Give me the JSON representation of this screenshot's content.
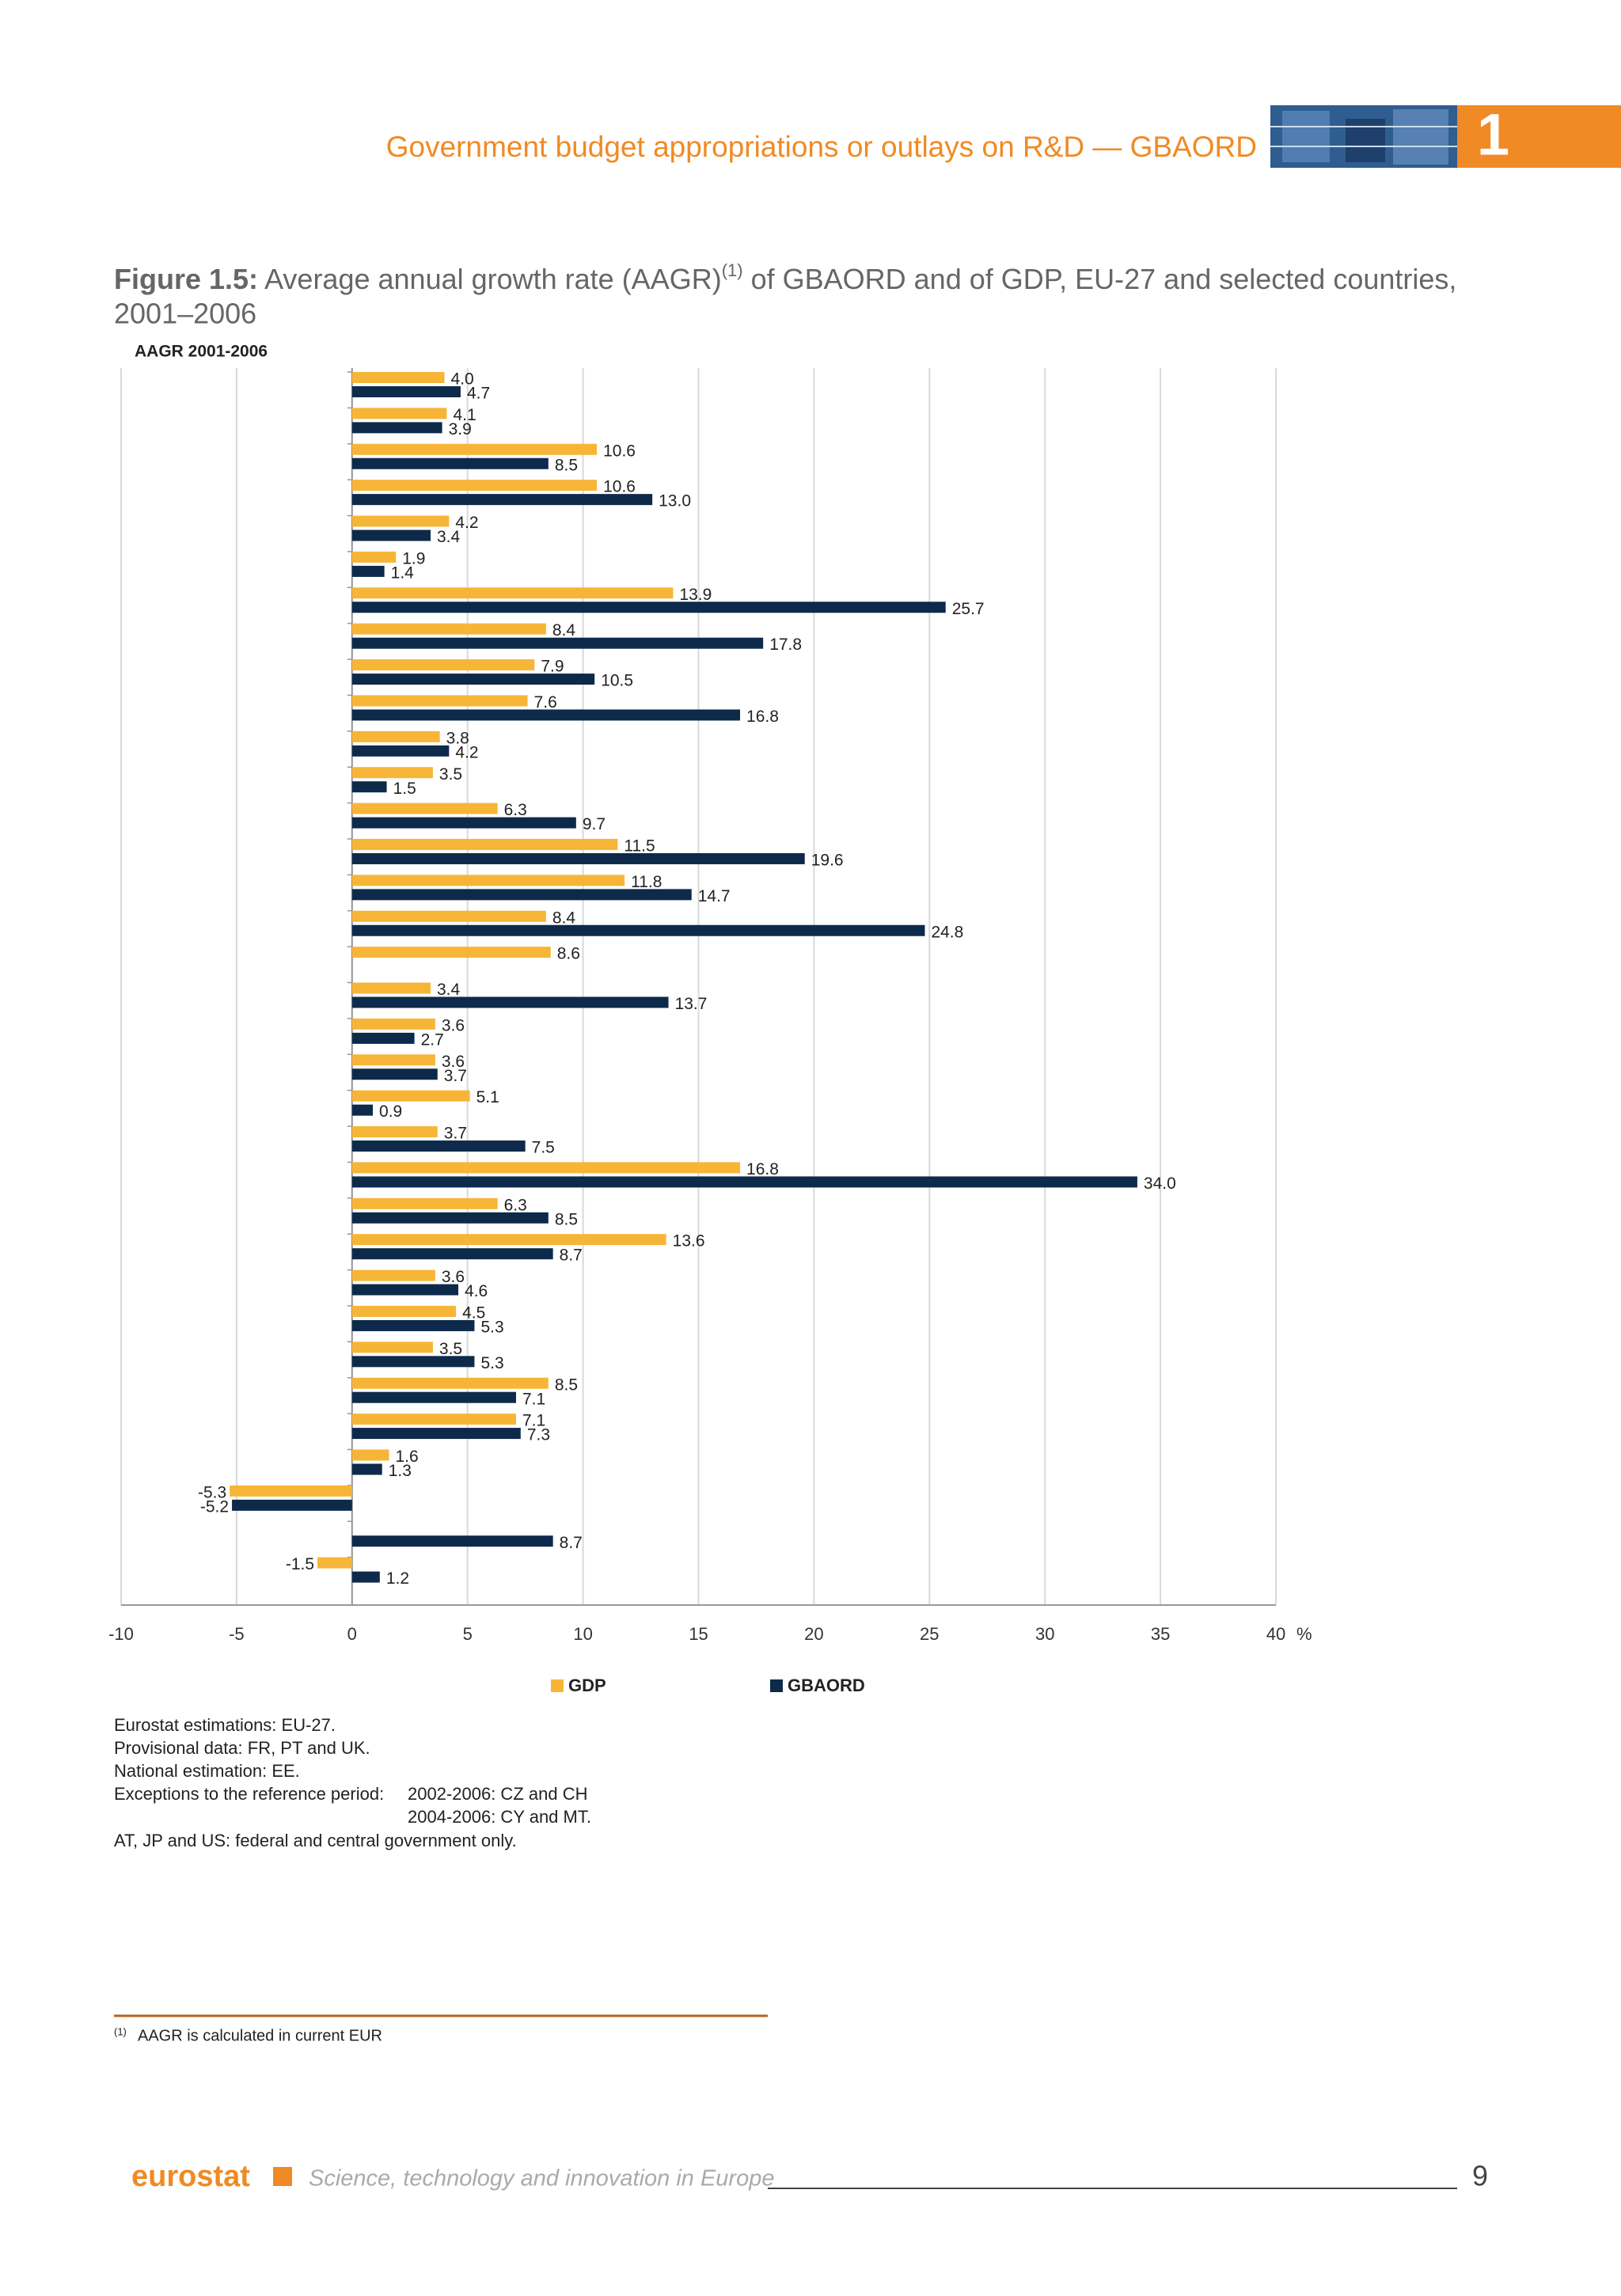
{
  "header": {
    "title": "Government budget appropriations or outlays on R&D — GBAORD",
    "chapter": "1"
  },
  "figure": {
    "label": "Figure 1.5:",
    "title_part1": "Average annual growth rate (AAGR)",
    "title_sup": "(1)",
    "title_part2": "of GBAORD and of GDP, EU-27 and selected countries,",
    "title_line2": "2001–2006"
  },
  "chart_data": {
    "type": "hbar",
    "ylabel": "AAGR 2001-2006",
    "xlabel": "%",
    "categories": [
      null,
      null,
      null,
      null,
      null,
      null,
      null,
      null,
      null,
      null,
      null,
      null,
      null,
      null,
      null,
      null,
      null,
      null,
      null,
      null,
      null,
      null,
      null,
      null,
      null,
      null,
      null,
      null,
      null,
      null,
      null,
      null,
      null,
      null
    ],
    "series": [
      {
        "name": "GDP",
        "color": "#f7b538",
        "values": [
          4.0,
          4.1,
          10.6,
          10.6,
          4.2,
          1.9,
          13.9,
          8.4,
          7.9,
          7.6,
          3.8,
          3.5,
          6.3,
          11.5,
          11.8,
          8.4,
          8.6,
          3.4,
          3.6,
          3.6,
          5.1,
          3.7,
          16.8,
          6.3,
          13.6,
          3.6,
          4.5,
          3.5,
          8.5,
          7.1,
          1.6,
          -5.3,
          null,
          -1.5
        ],
        "value_labels": [
          "4.0",
          "4.1",
          "10.6",
          "10.6",
          "4.2",
          "1.9",
          "13.9",
          "8.4",
          "7.9",
          "7.6",
          "3.8",
          "3.5",
          "6.3",
          "11.5",
          "11.8",
          "8.4",
          "8.6",
          "3.4",
          "3.6",
          "3.6",
          "5.1",
          "3.7",
          "16.8",
          "6.3",
          "13.6",
          "3.6",
          "4.5",
          "3.5",
          "8.5",
          "7.1",
          "1.6",
          "-5.3",
          null,
          "-1.5"
        ]
      },
      {
        "name": "GBAORD",
        "color": "#0d2a4a",
        "values": [
          4.7,
          3.9,
          8.5,
          13.0,
          3.4,
          1.4,
          25.7,
          17.8,
          10.5,
          16.8,
          4.2,
          1.5,
          9.7,
          19.6,
          14.7,
          24.8,
          null,
          13.7,
          2.7,
          3.7,
          0.9,
          7.5,
          34.0,
          8.5,
          8.7,
          4.6,
          5.3,
          5.3,
          7.1,
          7.3,
          1.3,
          -5.2,
          8.7,
          1.2
        ],
        "value_labels": [
          "4.7",
          "3.9",
          "8.5",
          "13.0",
          "3.4",
          "1.4",
          "25.7",
          "17.8",
          "10.5",
          "16.8",
          "4.2",
          "1.5",
          "9.7",
          "19.6",
          "14.7",
          "24.8",
          null,
          "13.7",
          "2.7",
          "3.7",
          "0.9",
          "7.5",
          "34.0",
          "8.5",
          "8.7",
          "4.6",
          "5.3",
          "5.3",
          "7.1",
          "7.3",
          "1.3",
          "-5.2",
          "8.7",
          "1.2"
        ]
      }
    ],
    "xlim": [
      -10,
      40
    ],
    "xticks": [
      -10,
      -5,
      0,
      5,
      10,
      15,
      20,
      25,
      30,
      35,
      40
    ],
    "grid": true,
    "legend": "bottom"
  },
  "notes": {
    "lines": [
      "Eurostat estimations: EU-27.",
      "Provisional data: FR, PT and UK.",
      "National estimation: EE."
    ],
    "exceptions_label": "Exceptions to the reference period:",
    "exceptions": [
      "2002-2006: CZ and CH",
      "2004-2006: CY and MT."
    ],
    "last": "AT, JP and US: federal and central government only."
  },
  "footnote": {
    "marker": "(1)",
    "text": "AAGR is calculated in current EUR"
  },
  "footer": {
    "brand": "eurostat",
    "publication": "Science, technology and innovation in Europe",
    "page": "9"
  }
}
